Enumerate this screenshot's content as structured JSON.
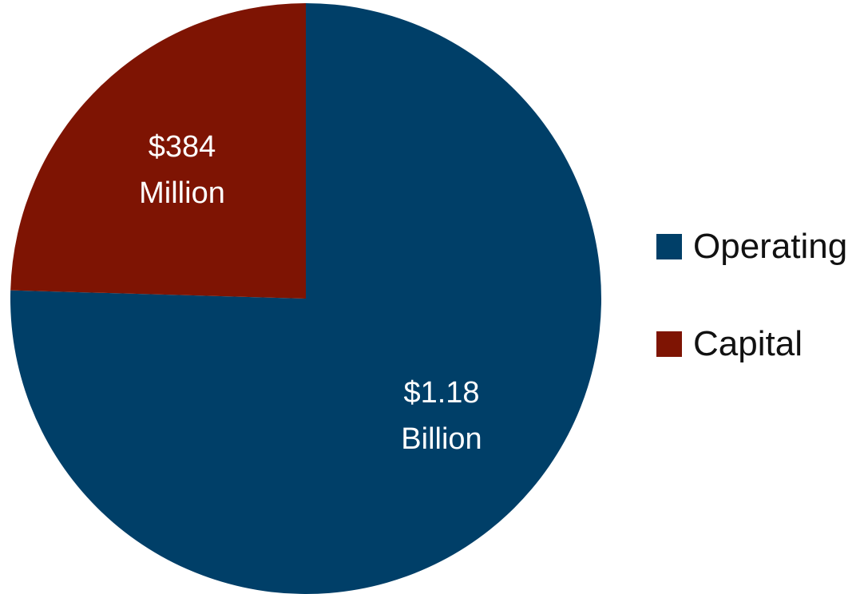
{
  "chart_data": {
    "type": "pie",
    "title": "",
    "slices": [
      {
        "name": "Operating",
        "label_line1": "$1.18",
        "label_line2": "Billion",
        "value": 1180,
        "color": "#003f68"
      },
      {
        "name": "Capital",
        "label_line1": "$384",
        "label_line2": "Million",
        "value": 384,
        "color": "#7e1403"
      }
    ],
    "legend": {
      "position": "right"
    }
  }
}
